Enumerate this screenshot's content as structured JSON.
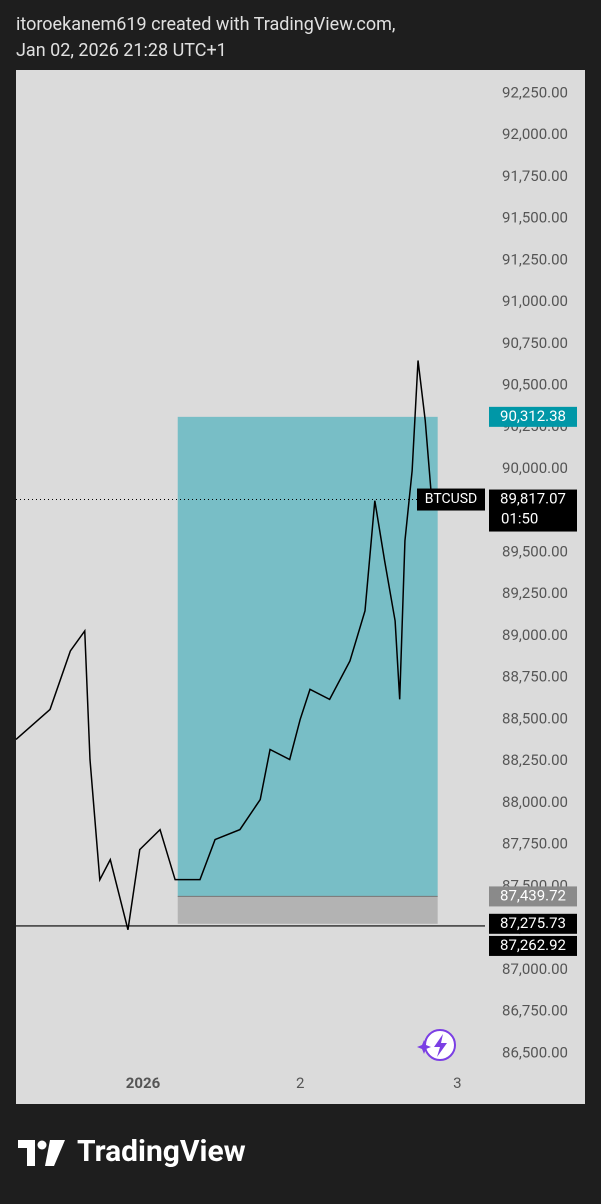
{
  "header": {
    "line1": "itoroekanem619 created with TradingView.com,",
    "line2": "Jan 02, 2026 21:28 UTC+1"
  },
  "chart_data": {
    "type": "line",
    "symbol": "BTCUSD",
    "color": "#000000",
    "x": [
      -19.4,
      -14.2,
      -11.1,
      -8.9,
      -8.1,
      -6.6,
      -5.0,
      -2.3,
      -0.5,
      2.6,
      4.9,
      6.4,
      8.7,
      11.0,
      14.8,
      17.9,
      19.4,
      22.4,
      24.0,
      25.5,
      28.5,
      31.6,
      33.9,
      35.4,
      36.9,
      38.5,
      39.2,
      40.0,
      41.1,
      42.0,
      43.1,
      44.1,
      45.0
    ],
    "values": [
      88380,
      88560,
      88910,
      89030,
      88260,
      87540,
      87660,
      87240,
      87720,
      87840,
      87540,
      87540,
      87540,
      87780,
      87840,
      88020,
      88320,
      88260,
      88500,
      88680,
      88620,
      88850,
      89150,
      89810,
      89450,
      89090,
      88620,
      89570,
      89990,
      90650,
      90290,
      89810,
      89817.07
    ],
    "xlim": [
      -19.4,
      67.5
    ],
    "xticks": [
      {
        "value": 0,
        "label": "2026"
      },
      {
        "value": 24,
        "label": "2"
      },
      {
        "value": 48,
        "label": "3"
      }
    ],
    "ylim": [
      86400,
      92390
    ],
    "yticks": [
      {
        "value": 86500,
        "label": "86,500.00"
      },
      {
        "value": 86750,
        "label": "86,750.00"
      },
      {
        "value": 87000,
        "label": "87,000.00"
      },
      {
        "value": 87250,
        "label": "87,250.00"
      },
      {
        "value": 87500,
        "label": "87,500.00"
      },
      {
        "value": 87750,
        "label": "87,750.00"
      },
      {
        "value": 88000,
        "label": "88,000.00"
      },
      {
        "value": 88250,
        "label": "88,250.00"
      },
      {
        "value": 88500,
        "label": "88,500.00"
      },
      {
        "value": 88750,
        "label": "88,750.00"
      },
      {
        "value": 89000,
        "label": "89,000.00"
      },
      {
        "value": 89250,
        "label": "89,250.00"
      },
      {
        "value": 89500,
        "label": "89,500.00"
      },
      {
        "value": 89750,
        "label": "89,750.00"
      },
      {
        "value": 90000,
        "label": "90,000.00"
      },
      {
        "value": 90250,
        "label": "90,250.00"
      },
      {
        "value": 90500,
        "label": "90,500.00"
      },
      {
        "value": 90750,
        "label": "90,750.00"
      },
      {
        "value": 91000,
        "label": "91,000.00"
      },
      {
        "value": 91250,
        "label": "91,250.00"
      },
      {
        "value": 91500,
        "label": "91,500.00"
      },
      {
        "value": 91750,
        "label": "91,750.00"
      },
      {
        "value": 92000,
        "label": "92,000.00"
      },
      {
        "value": 92250,
        "label": "92,250.00"
      }
    ],
    "position": {
      "start": 5.3,
      "end": 45.0,
      "target": 90312.38,
      "entry": 87439.72,
      "stop": 87275.73
    },
    "support": 87262.92,
    "countdown": "01:50",
    "price_labels": [
      {
        "value": 90312.38,
        "label": "90,312.38",
        "color": "#0097a7"
      },
      {
        "value": 89817.07,
        "label": "89,817.07",
        "color": "#000000"
      },
      {
        "value": 87439.72,
        "label": "87,439.72",
        "color": "#8a8a8a"
      },
      {
        "value": 87275.73,
        "label": "87,275.73",
        "color": "#000000"
      },
      {
        "value": 87262.92,
        "label": "87,262.92",
        "color": "#000000"
      }
    ]
  },
  "footer": {
    "brand": "TradingView"
  }
}
